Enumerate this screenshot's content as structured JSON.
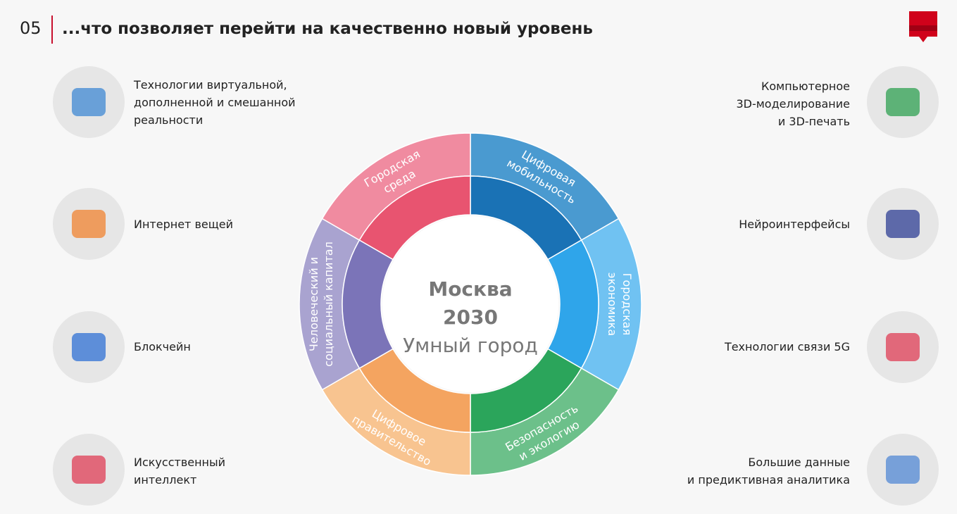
{
  "header": {
    "number": "05",
    "title": "...что позволяет перейти на качественно новый уровень"
  },
  "center": {
    "lines": [
      "Москва",
      "2030",
      "Умный город"
    ]
  },
  "segments": [
    {
      "lines": [
        "Цифровая",
        "мобильность"
      ]
    },
    {
      "lines": [
        "Городская",
        "экономика"
      ]
    },
    {
      "lines": [
        "Безопасность",
        "и экологию"
      ]
    },
    {
      "lines": [
        "Цифровое",
        "правительство"
      ]
    },
    {
      "lines": [
        "Человеческий и",
        "социальный капитал"
      ]
    },
    {
      "lines": [
        "Городская",
        "среда"
      ]
    }
  ],
  "left_items": [
    {
      "lines": [
        "Технологии виртуальной,",
        "дополненной и смешанной",
        "реальности"
      ]
    },
    {
      "lines": [
        "Интернет вещей"
      ]
    },
    {
      "lines": [
        "Блокчейн"
      ]
    },
    {
      "lines": [
        "Искусственный",
        "интеллект"
      ]
    }
  ],
  "right_items": [
    {
      "lines": [
        "Компьютерное",
        "3D-моделирование",
        "и 3D-печать"
      ]
    },
    {
      "lines": [
        "Нейроинтерфейсы"
      ]
    },
    {
      "lines": [
        "Технологии связи 5G"
      ]
    },
    {
      "lines": [
        "Большие данные",
        "и предиктивная аналитика"
      ]
    }
  ]
}
